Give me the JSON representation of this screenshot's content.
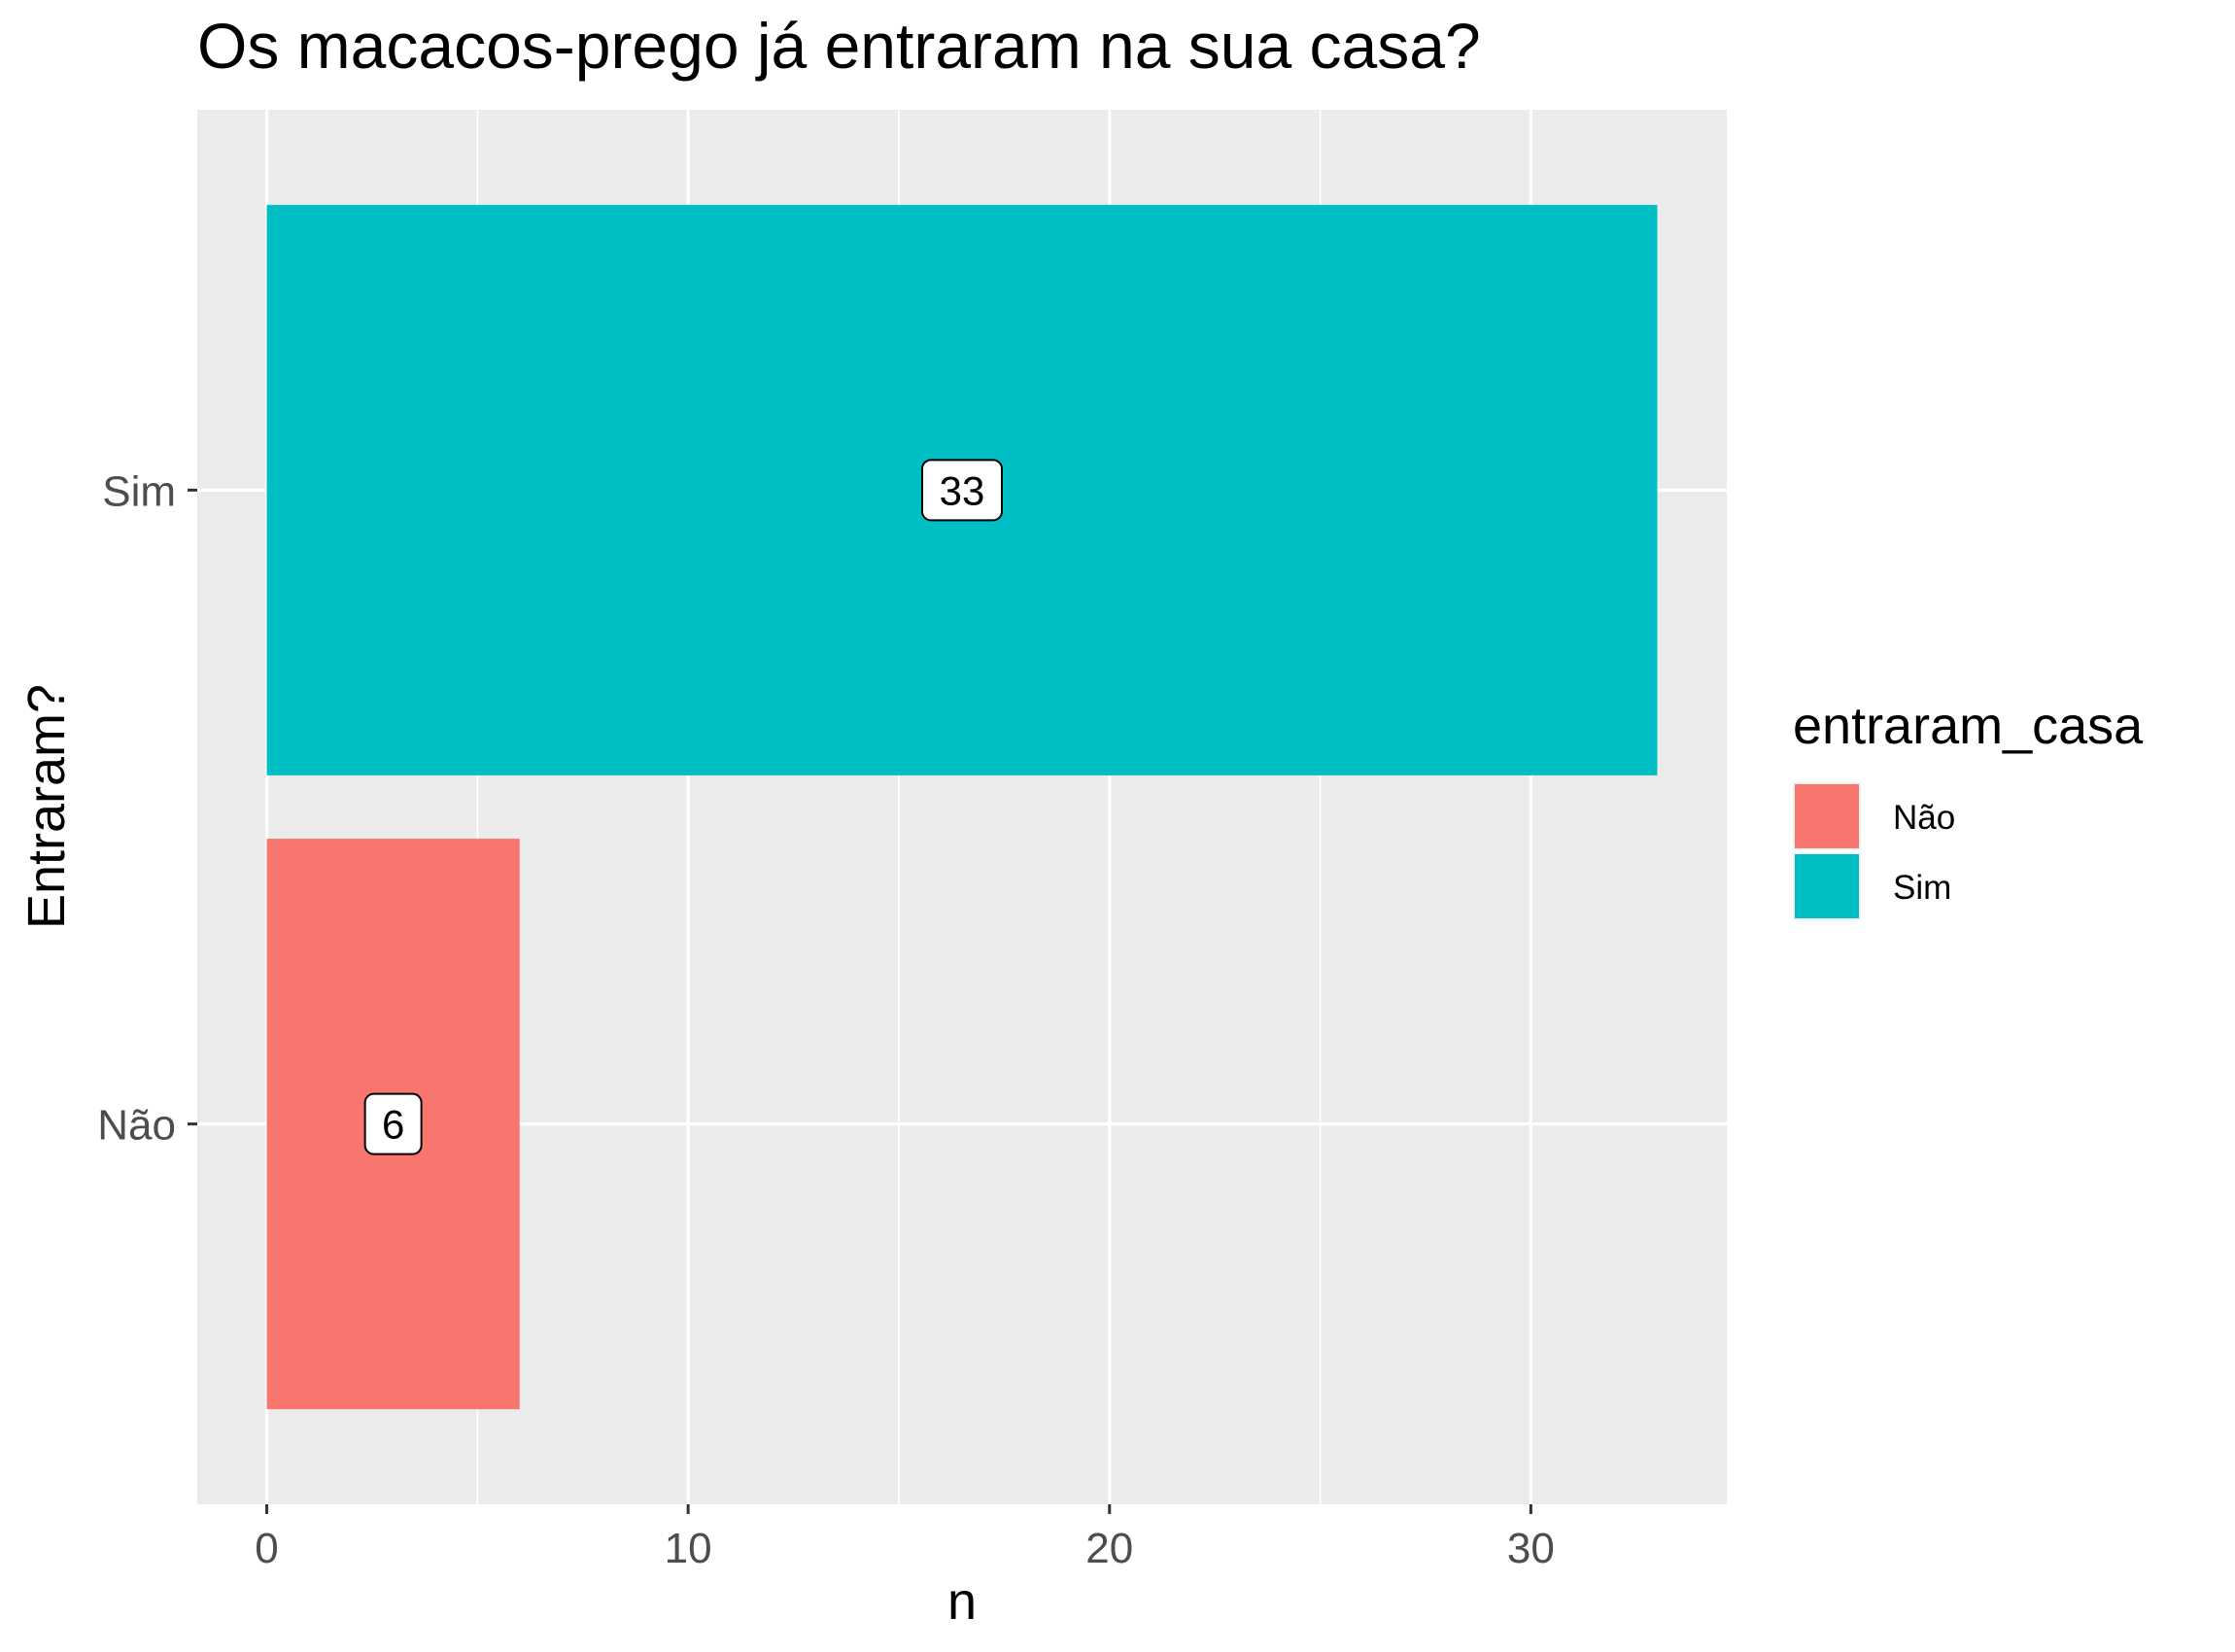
{
  "chart_data": {
    "type": "bar",
    "orientation": "horizontal",
    "title": "Os macacos-prego já entraram na sua casa?",
    "xlabel": "n",
    "ylabel": "Entraram?",
    "categories": [
      "Não",
      "Sim"
    ],
    "values": [
      6,
      33
    ],
    "data_labels": [
      "6",
      "33"
    ],
    "colors": [
      "#F8766D",
      "#00BFC4"
    ],
    "xlim": [
      -1.65,
      34.65
    ],
    "xticks": [
      0,
      10,
      20,
      30
    ],
    "xtick_labels": [
      "0",
      "10",
      "20",
      "30"
    ],
    "x_minor_ticks": [
      5,
      15,
      25
    ],
    "grid": true,
    "panel_background": "#EBEBEB",
    "grid_color": "#FFFFFF",
    "legend": {
      "title": "entraram_casa",
      "position": "right",
      "entries": [
        {
          "label": "Não",
          "color": "#F8766D"
        },
        {
          "label": "Sim",
          "color": "#00BFC4"
        }
      ]
    }
  }
}
